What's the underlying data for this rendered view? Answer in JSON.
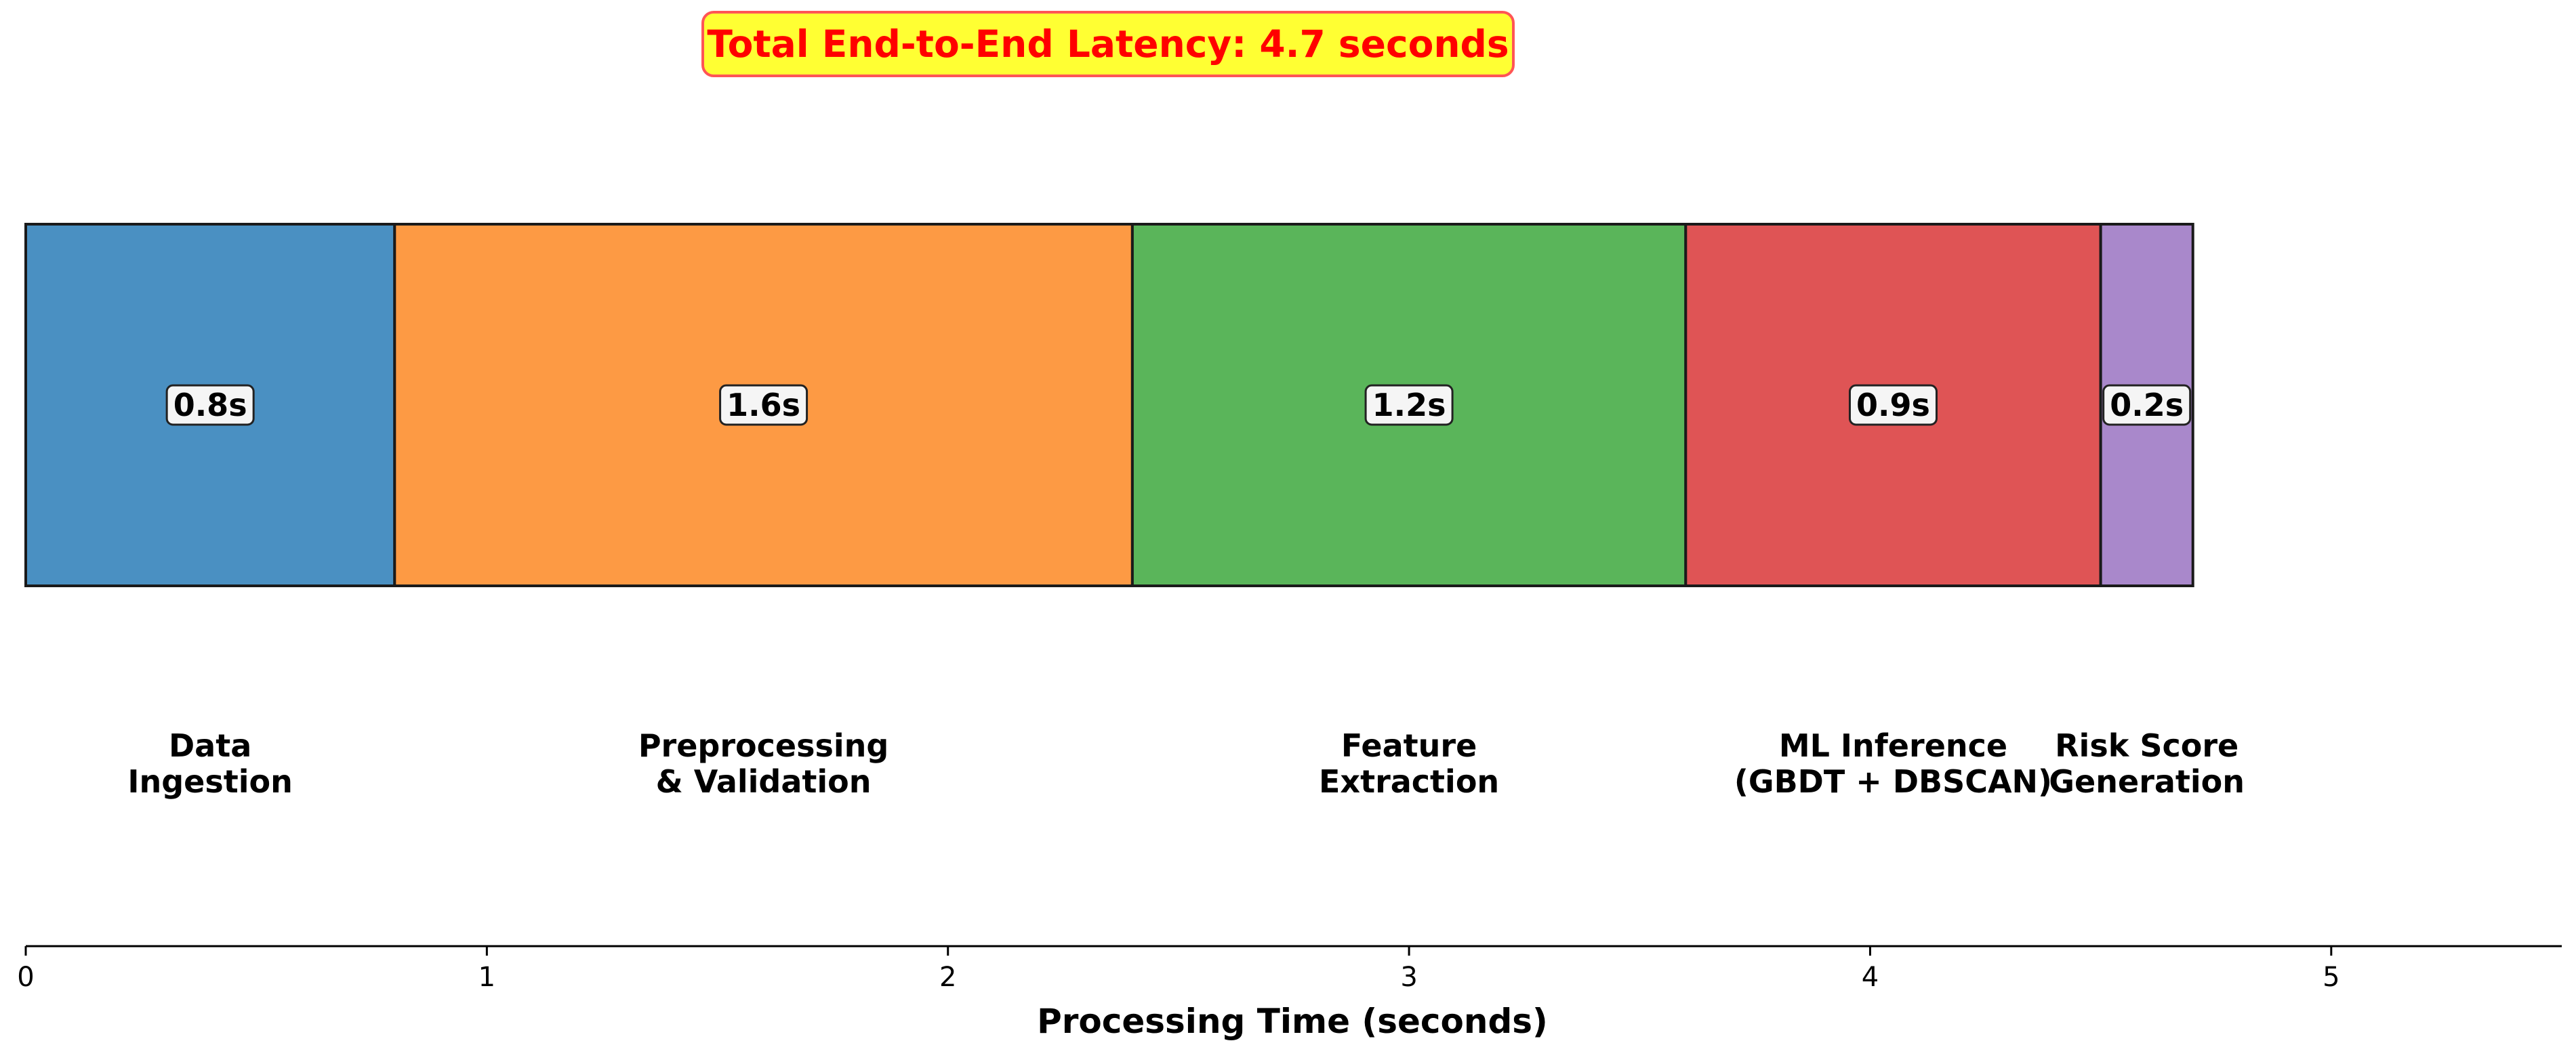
{
  "annotation": {
    "total_latency": "Total End-to-End Latency: 4.7 seconds"
  },
  "chart_data": {
    "type": "bar",
    "orientation": "horizontal-stacked",
    "xlabel": "Processing Time (seconds)",
    "ylabel": "",
    "xlim": [
      0,
      5.5
    ],
    "xticks": [
      0,
      1,
      2,
      3,
      4,
      5
    ],
    "grid": false,
    "segments": [
      {
        "stage": "Data\nIngestion",
        "value": 0.8,
        "label": "0.8s",
        "color": "#4a90c2"
      },
      {
        "stage": "Preprocessing\n& Validation",
        "value": 1.6,
        "label": "1.6s",
        "color": "#fd9a44"
      },
      {
        "stage": "Feature\nExtraction",
        "value": 1.2,
        "label": "1.2s",
        "color": "#5ab55a"
      },
      {
        "stage": "ML Inference\n(GBDT + DBSCAN)",
        "value": 0.9,
        "label": "0.9s",
        "color": "#df5455"
      },
      {
        "stage": "Risk Score\nGeneration",
        "value": 0.2,
        "label": "0.2s",
        "color": "#a988cb"
      }
    ]
  }
}
